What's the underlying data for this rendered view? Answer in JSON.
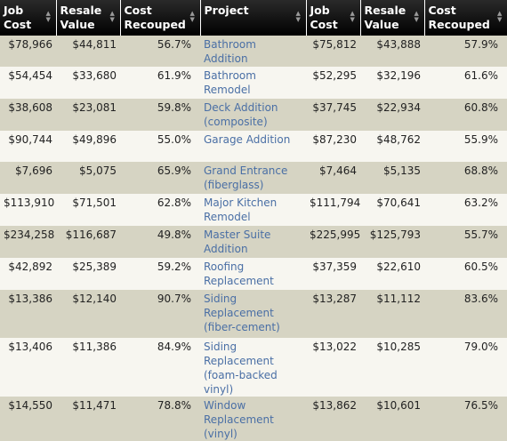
{
  "headers": [
    "Job\nCost",
    "Resale\nValue",
    "Cost\nRecouped",
    "Project",
    "Job\nCost",
    "Resale\nValue",
    "Cost\nRecouped"
  ],
  "rows": [
    {
      "job1": "$78,966",
      "resale1": "$44,811",
      "recoup1": "56.7%",
      "project": "Bathroom Addition",
      "job2": "$75,812",
      "resale2": "$43,888",
      "recoup2": "57.9%"
    },
    {
      "job1": "$54,454",
      "resale1": "$33,680",
      "recoup1": "61.9%",
      "project": "Bathroom Remodel",
      "job2": "$52,295",
      "resale2": "$32,196",
      "recoup2": "61.6%"
    },
    {
      "job1": "$38,608",
      "resale1": "$23,081",
      "recoup1": "59.8%",
      "project": "Deck Addition (composite)",
      "job2": "$37,745",
      "resale2": "$22,934",
      "recoup2": "60.8%"
    },
    {
      "job1": "$90,744",
      "resale1": "$49,896",
      "recoup1": "55.0%",
      "project": "Garage Addition",
      "job2": "$87,230",
      "resale2": "$48,762",
      "recoup2": "55.9%"
    },
    {
      "job1": "$7,696",
      "resale1": "$5,075",
      "recoup1": "65.9%",
      "project": "Grand Entrance (fiberglass)",
      "job2": "$7,464",
      "resale2": "$5,135",
      "recoup2": "68.8%"
    },
    {
      "job1": "$113,910",
      "resale1": "$71,501",
      "recoup1": "62.8%",
      "project": "Major Kitchen Remodel",
      "job2": "$111,794",
      "resale2": "$70,641",
      "recoup2": "63.2%"
    },
    {
      "job1": "$234,258",
      "resale1": "$116,687",
      "recoup1": "49.8%",
      "project": "Master Suite Addition",
      "job2": "$225,995",
      "resale2": "$125,793",
      "recoup2": "55.7%"
    },
    {
      "job1": "$42,892",
      "resale1": "$25,389",
      "recoup1": "59.2%",
      "project": "Roofing Replacement",
      "job2": "$37,359",
      "resale2": "$22,610",
      "recoup2": "60.5%"
    },
    {
      "job1": "$13,386",
      "resale1": "$12,140",
      "recoup1": "90.7%",
      "project": "Siding Replacement (fiber-cement)",
      "job2": "$13,287",
      "resale2": "$11,112",
      "recoup2": "83.6%"
    },
    {
      "job1": "$13,406",
      "resale1": "$11,386",
      "recoup1": "84.9%",
      "project": "Siding Replacement (foam-backed vinyl)",
      "job2": "$13,022",
      "resale2": "$10,285",
      "recoup2": "79.0%"
    },
    {
      "job1": "$14,550",
      "resale1": "$11,471",
      "recoup1": "78.8%",
      "project": "Window Replacement (vinyl)",
      "job2": "$13,862",
      "resale2": "$10,601",
      "recoup2": "76.5%"
    }
  ],
  "icons": {
    "sort": "sort-arrows-icon"
  },
  "colors": {
    "header_bg": "#000000",
    "row_odd": "#d6d4c3",
    "row_even": "#f7f6f0",
    "project_link": "#4a6fa5"
  }
}
